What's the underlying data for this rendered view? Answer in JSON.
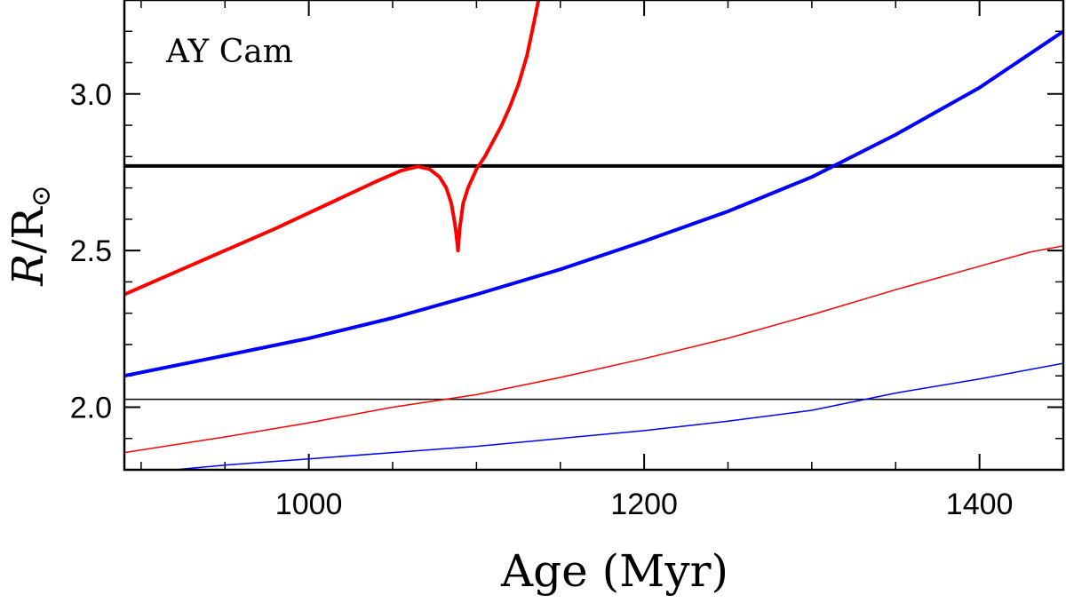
{
  "chart_data": {
    "type": "line",
    "title": "",
    "annotation": "AY Cam",
    "xlabel": "Age (Myr)",
    "ylabel": {
      "symbol": "R",
      "text": "/R",
      "subscript": "⊙"
    },
    "xlim": [
      890,
      1450
    ],
    "ylim": [
      1.8,
      3.3
    ],
    "xticks": [
      1000,
      1200,
      1400
    ],
    "xtick_labels": [
      "1000",
      "1200",
      "1400"
    ],
    "yticks": [
      2.0,
      2.5,
      3.0
    ],
    "ytick_labels": [
      "2.0",
      "2.5",
      "3.0"
    ],
    "x_minor_step": 50,
    "y_minor_step": 0.1,
    "grid": false,
    "hlines": [
      {
        "name": "primary-observed-radius",
        "y": 2.77,
        "color": "#000000",
        "weight": "thick"
      },
      {
        "name": "secondary-observed-radius",
        "y": 2.025,
        "color": "#000000",
        "weight": "thin"
      }
    ],
    "series": [
      {
        "name": "primary-model-red",
        "color": "#ff0000",
        "weight": "thick",
        "x": [
          890,
          920,
          950,
          980,
          1010,
          1040,
          1055,
          1065,
          1072,
          1078,
          1082,
          1085,
          1087,
          1088,
          1089,
          1090,
          1092,
          1095,
          1100,
          1105,
          1110,
          1115,
          1120,
          1125,
          1130,
          1134,
          1137
        ],
        "y": [
          2.36,
          2.43,
          2.5,
          2.57,
          2.645,
          2.72,
          2.755,
          2.768,
          2.76,
          2.735,
          2.7,
          2.65,
          2.59,
          2.55,
          2.5,
          2.57,
          2.65,
          2.7,
          2.76,
          2.8,
          2.85,
          2.9,
          2.96,
          3.03,
          3.12,
          3.22,
          3.3
        ]
      },
      {
        "name": "secondary-model-red",
        "color": "#ff0000",
        "weight": "thin",
        "x": [
          890,
          950,
          1000,
          1050,
          1100,
          1150,
          1200,
          1250,
          1300,
          1350,
          1400,
          1430,
          1450
        ],
        "y": [
          1.855,
          1.905,
          1.95,
          2.0,
          2.04,
          2.095,
          2.155,
          2.22,
          2.295,
          2.375,
          2.45,
          2.495,
          2.515
        ]
      },
      {
        "name": "primary-model-blue",
        "color": "#0000ff",
        "weight": "thick",
        "x": [
          890,
          950,
          1000,
          1050,
          1100,
          1150,
          1200,
          1250,
          1300,
          1350,
          1400,
          1450
        ],
        "y": [
          2.1,
          2.165,
          2.22,
          2.285,
          2.36,
          2.44,
          2.53,
          2.625,
          2.735,
          2.87,
          3.02,
          3.2
        ]
      },
      {
        "name": "secondary-model-blue",
        "color": "#0000ff",
        "weight": "thin",
        "x": [
          920,
          950,
          1000,
          1050,
          1100,
          1150,
          1200,
          1250,
          1300,
          1350,
          1400,
          1450
        ],
        "y": [
          1.8,
          1.815,
          1.835,
          1.855,
          1.875,
          1.9,
          1.925,
          1.955,
          1.99,
          2.045,
          2.09,
          2.14
        ]
      }
    ]
  }
}
